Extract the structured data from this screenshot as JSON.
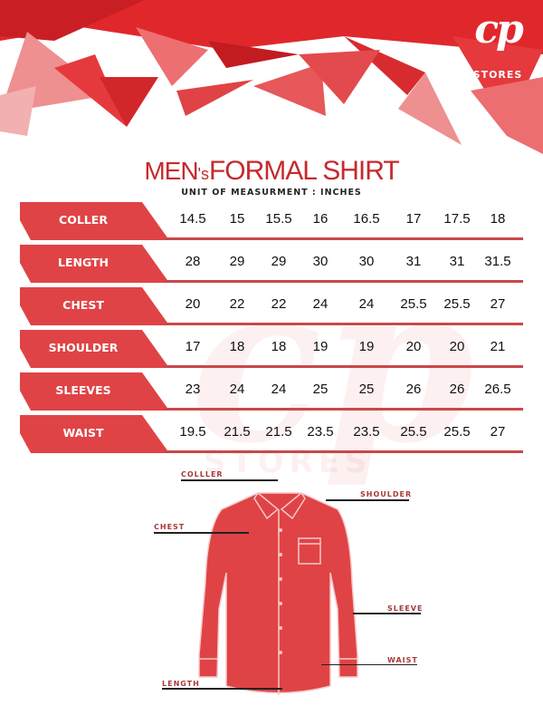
{
  "brand": {
    "logo_text": "cp",
    "logo_subtext": "STORES",
    "watermark": "cp",
    "watermark_sub": "STORES"
  },
  "colors": {
    "accent": "#e04345",
    "title": "#c62a2e"
  },
  "title": {
    "part1": "MEN",
    "part2": "'s",
    "part3": "FORMAL SHIRT"
  },
  "unit": "UNIT OF MEASURMENT : INCHES",
  "table": {
    "rows": [
      {
        "label": "COLLER",
        "values": [
          "14.5",
          "15",
          "15.5",
          "16",
          "16.5",
          "17",
          "17.5",
          "18"
        ]
      },
      {
        "label": "LENGTH",
        "values": [
          "28",
          "29",
          "29",
          "30",
          "30",
          "31",
          "31",
          "31.5"
        ]
      },
      {
        "label": "CHEST",
        "values": [
          "20",
          "22",
          "22",
          "24",
          "24",
          "25.5",
          "25.5",
          "27"
        ]
      },
      {
        "label": "SHOULDER",
        "values": [
          "17",
          "18",
          "18",
          "19",
          "19",
          "20",
          "20",
          "21"
        ]
      },
      {
        "label": "SLEEVES",
        "values": [
          "23",
          "24",
          "24",
          "25",
          "25",
          "26",
          "26",
          "26.5"
        ]
      },
      {
        "label": "WAIST",
        "values": [
          "19.5",
          "21.5",
          "21.5",
          "23.5",
          "23.5",
          "25.5",
          "25.5",
          "27"
        ]
      }
    ]
  },
  "diagram": {
    "collar": "COLLLER",
    "shoulder": "SHOULDER",
    "chest": "CHEST",
    "sleeve": "SLEEVE",
    "waist": "WAIST",
    "length": "LENGTH"
  }
}
